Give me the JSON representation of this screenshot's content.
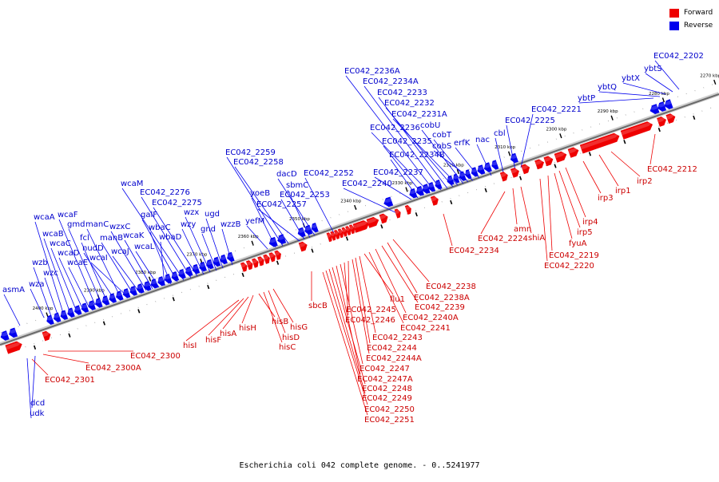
{
  "legend": {
    "forward": {
      "label": "Forward",
      "color": "#ee0000"
    },
    "reverse": {
      "label": "Reverse",
      "color": "#0000ee"
    }
  },
  "caption": "Escherichia coli 042 complete genome. - 0..5241977",
  "axis": {
    "start_kbp": 2270,
    "end_kbp": 2410,
    "ticks": [
      "2270 kbp",
      "2280 kbp",
      "2290 kbp",
      "2300 kbp",
      "2310 kbp",
      "2320 kbp",
      "2330 kbp",
      "2340 kbp",
      "2350 kbp",
      "2360 kbp",
      "2370 kbp",
      "2380 kbp",
      "2390 kbp",
      "2400 kbp"
    ]
  },
  "reverse_genes": [
    "EC042_2202",
    "ybtS",
    "ybtX",
    "ybtQ",
    "ybtP",
    "EC042_2221",
    "EC042_2225",
    "cbl",
    "nac",
    "erfK",
    "cobS",
    "cobT",
    "cobU",
    "EC042_2231A",
    "EC042_2232",
    "EC042_2233",
    "EC042_2234A",
    "EC042_2236A",
    "EC042_2236",
    "EC042_2235",
    "EC042_2234B",
    "EC042_2237",
    "EC042_2240",
    "EC042_2252",
    "dacD",
    "sbmC",
    "EC042_2253",
    "EC042_2257",
    "EC042_2258",
    "EC042_2259",
    "yoeB",
    "yefM",
    "wzzB",
    "ugd",
    "gnd",
    "wzx",
    "wzy",
    "EC042_2275",
    "EC042_2276",
    "wcaM",
    "galF",
    "wbaC",
    "wbaD",
    "wcaL",
    "wcaK",
    "wzxC",
    "wcaJ",
    "manB",
    "wcaI",
    "manC",
    "nudD",
    "fcl",
    "gmd",
    "wcaF",
    "wcaE",
    "wcaD",
    "wcaC",
    "wcaB",
    "wcaA",
    "wzc",
    "wzb",
    "wza",
    "asmA",
    "dcd",
    "udk"
  ],
  "forward_genes": [
    "EC042_2212",
    "irp1",
    "irp2",
    "irp3",
    "irp4",
    "irp5",
    "fyuA",
    "EC042_2219",
    "EC042_2220",
    "shiA",
    "amn",
    "EC042_2224",
    "EC042_2234",
    "EC042_2238",
    "EC042_2238A",
    "EC042_2239",
    "EC042_2240A",
    "EC042_2241",
    "flu1",
    "EC042_2243",
    "EC042_2244",
    "EC042_2244A",
    "EC042_2245",
    "EC042_2246",
    "EC042_2247",
    "EC042_2247A",
    "EC042_2248",
    "EC042_2249",
    "EC042_2250",
    "EC042_2251",
    "sbcB",
    "hisG",
    "hisD",
    "hisC",
    "hisB",
    "hisH",
    "hisA",
    "hisF",
    "hisI",
    "EC042_2300",
    "EC042_2300A",
    "EC042_2301"
  ]
}
